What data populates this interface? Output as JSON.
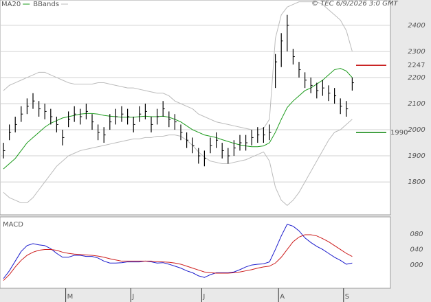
{
  "chart_data": [
    {
      "type": "ohlc",
      "annotation": "© TEC 6/9/2026 3:0 GMT",
      "ylim": [
        1674,
        2497
      ],
      "yticks": [
        1800,
        1900,
        2000,
        2100,
        2200,
        2300,
        2400
      ],
      "grid": true,
      "bar_color": "#000000",
      "high": [
        1950,
        2020,
        2050,
        2090,
        2120,
        2140,
        2110,
        2100,
        2080,
        2050,
        2000,
        2070,
        2090,
        2080,
        2100,
        2060,
        2020,
        2010,
        2060,
        2080,
        2090,
        2080,
        2050,
        2090,
        2100,
        2050,
        2080,
        2110,
        2070,
        2060,
        2020,
        1990,
        1970,
        1930,
        1920,
        1970,
        1990,
        1950,
        1930,
        1960,
        1980,
        1980,
        2000,
        2010,
        2010,
        2020,
        2290,
        2370,
        2440,
        2310,
        2260,
        2220,
        2200,
        2180,
        2190,
        2170,
        2160,
        2120,
        2110,
        2200
      ],
      "low": [
        1890,
        1960,
        1990,
        2030,
        2060,
        2080,
        2050,
        2040,
        2020,
        1990,
        1940,
        2010,
        2030,
        2020,
        2040,
        2000,
        1960,
        1950,
        2000,
        2020,
        2030,
        2020,
        1990,
        2030,
        2040,
        1990,
        2020,
        2050,
        2010,
        2000,
        1960,
        1930,
        1910,
        1870,
        1860,
        1910,
        1930,
        1890,
        1870,
        1900,
        1920,
        1920,
        1940,
        1950,
        1950,
        1960,
        2160,
        2240,
        2300,
        2250,
        2200,
        2160,
        2140,
        2120,
        2130,
        2110,
        2100,
        2060,
        2050,
        2150
      ],
      "close": [
        1920,
        1990,
        2020,
        2060,
        2090,
        2110,
        2080,
        2070,
        2050,
        2020,
        1970,
        2040,
        2060,
        2050,
        2070,
        2030,
        1990,
        1980,
        2030,
        2050,
        2060,
        2050,
        2020,
        2060,
        2070,
        2020,
        2050,
        2080,
        2040,
        2030,
        1990,
        1960,
        1940,
        1900,
        1890,
        1940,
        1960,
        1920,
        1900,
        1930,
        1950,
        1950,
        1970,
        1980,
        1980,
        1990,
        2260,
        2340,
        2400,
        2280,
        2230,
        2190,
        2170,
        2150,
        2160,
        2140,
        2130,
        2090,
        2080,
        2180
      ],
      "series": [
        {
          "name": "MA20",
          "color": "#1a9a1a",
          "values": [
            1850,
            1870,
            1890,
            1920,
            1950,
            1970,
            1990,
            2010,
            2025,
            2035,
            2045,
            2050,
            2055,
            2060,
            2062,
            2062,
            2060,
            2055,
            2052,
            2050,
            2048,
            2048,
            2048,
            2050,
            2052,
            2050,
            2050,
            2052,
            2048,
            2040,
            2030,
            2015,
            2000,
            1990,
            1980,
            1975,
            1970,
            1962,
            1955,
            1948,
            1942,
            1938,
            1935,
            1935,
            1938,
            1950,
            1990,
            2040,
            2085,
            2110,
            2130,
            2150,
            2160,
            2175,
            2190,
            2210,
            2230,
            2235,
            2225,
            2200
          ]
        },
        {
          "name": "BBands",
          "color": "#bbbbbb",
          "upper": [
            2150,
            2170,
            2180,
            2190,
            2200,
            2210,
            2220,
            2220,
            2210,
            2200,
            2190,
            2180,
            2175,
            2175,
            2175,
            2175,
            2180,
            2180,
            2175,
            2170,
            2165,
            2160,
            2160,
            2155,
            2150,
            2145,
            2140,
            2140,
            2130,
            2110,
            2100,
            2090,
            2080,
            2060,
            2050,
            2040,
            2030,
            2025,
            2020,
            2015,
            2010,
            2005,
            2000,
            2000,
            2005,
            2040,
            2350,
            2440,
            2470,
            2480,
            2490,
            2490,
            2490,
            2490,
            2480,
            2460,
            2440,
            2420,
            2380,
            2300
          ],
          "lower": [
            1760,
            1740,
            1730,
            1720,
            1720,
            1740,
            1770,
            1800,
            1830,
            1860,
            1880,
            1900,
            1910,
            1920,
            1925,
            1930,
            1935,
            1940,
            1945,
            1950,
            1955,
            1960,
            1965,
            1965,
            1970,
            1970,
            1975,
            1975,
            1980,
            1980,
            1975,
            1960,
            1940,
            1915,
            1895,
            1880,
            1875,
            1870,
            1870,
            1875,
            1880,
            1885,
            1895,
            1905,
            1915,
            1880,
            1780,
            1730,
            1710,
            1730,
            1760,
            1800,
            1840,
            1880,
            1920,
            1960,
            1990,
            2000,
            2020,
            2040
          ]
        }
      ],
      "levels": [
        {
          "value": 2247,
          "color": "#c00000"
        },
        {
          "value": 1990,
          "color": "#008000"
        }
      ]
    },
    {
      "type": "line",
      "title": "MACD",
      "ylim": [
        -60,
        124
      ],
      "yticks": [
        {
          "value": 0,
          "label": "000"
        },
        {
          "value": 40,
          "label": "040"
        },
        {
          "value": 80,
          "label": "080"
        }
      ],
      "categories": [
        null,
        null,
        null,
        null,
        null,
        null,
        null,
        null,
        null,
        null,
        null,
        "M",
        null,
        null,
        null,
        null,
        null,
        null,
        null,
        null,
        null,
        null,
        "J",
        null,
        null,
        null,
        null,
        null,
        null,
        null,
        null,
        null,
        null,
        null,
        "J",
        null,
        null,
        null,
        null,
        null,
        null,
        null,
        null,
        null,
        null,
        null,
        null,
        "A",
        null,
        null,
        null,
        null,
        null,
        null,
        null,
        null,
        null,
        null,
        "S",
        null
      ],
      "series": [
        {
          "color": "#1a1acc",
          "values": [
            -35,
            -15,
            10,
            35,
            50,
            55,
            52,
            50,
            42,
            30,
            20,
            20,
            25,
            25,
            22,
            22,
            18,
            10,
            5,
            5,
            6,
            8,
            8,
            8,
            10,
            8,
            5,
            6,
            2,
            -3,
            -8,
            -15,
            -20,
            -28,
            -32,
            -25,
            -20,
            -20,
            -20,
            -18,
            -12,
            -5,
            0,
            2,
            3,
            8,
            40,
            75,
            105,
            100,
            88,
            70,
            58,
            48,
            40,
            30,
            20,
            12,
            2,
            5
          ]
        },
        {
          "color": "#cc1a1a",
          "values": [
            -40,
            -25,
            -5,
            12,
            25,
            33,
            38,
            40,
            40,
            38,
            33,
            30,
            28,
            27,
            26,
            25,
            23,
            20,
            16,
            13,
            10,
            10,
            10,
            10,
            10,
            10,
            9,
            8,
            7,
            5,
            2,
            -3,
            -8,
            -13,
            -18,
            -20,
            -21,
            -21,
            -21,
            -20,
            -18,
            -15,
            -12,
            -8,
            -5,
            -3,
            5,
            20,
            40,
            60,
            72,
            78,
            78,
            75,
            68,
            60,
            50,
            40,
            30,
            22
          ]
        }
      ]
    }
  ]
}
